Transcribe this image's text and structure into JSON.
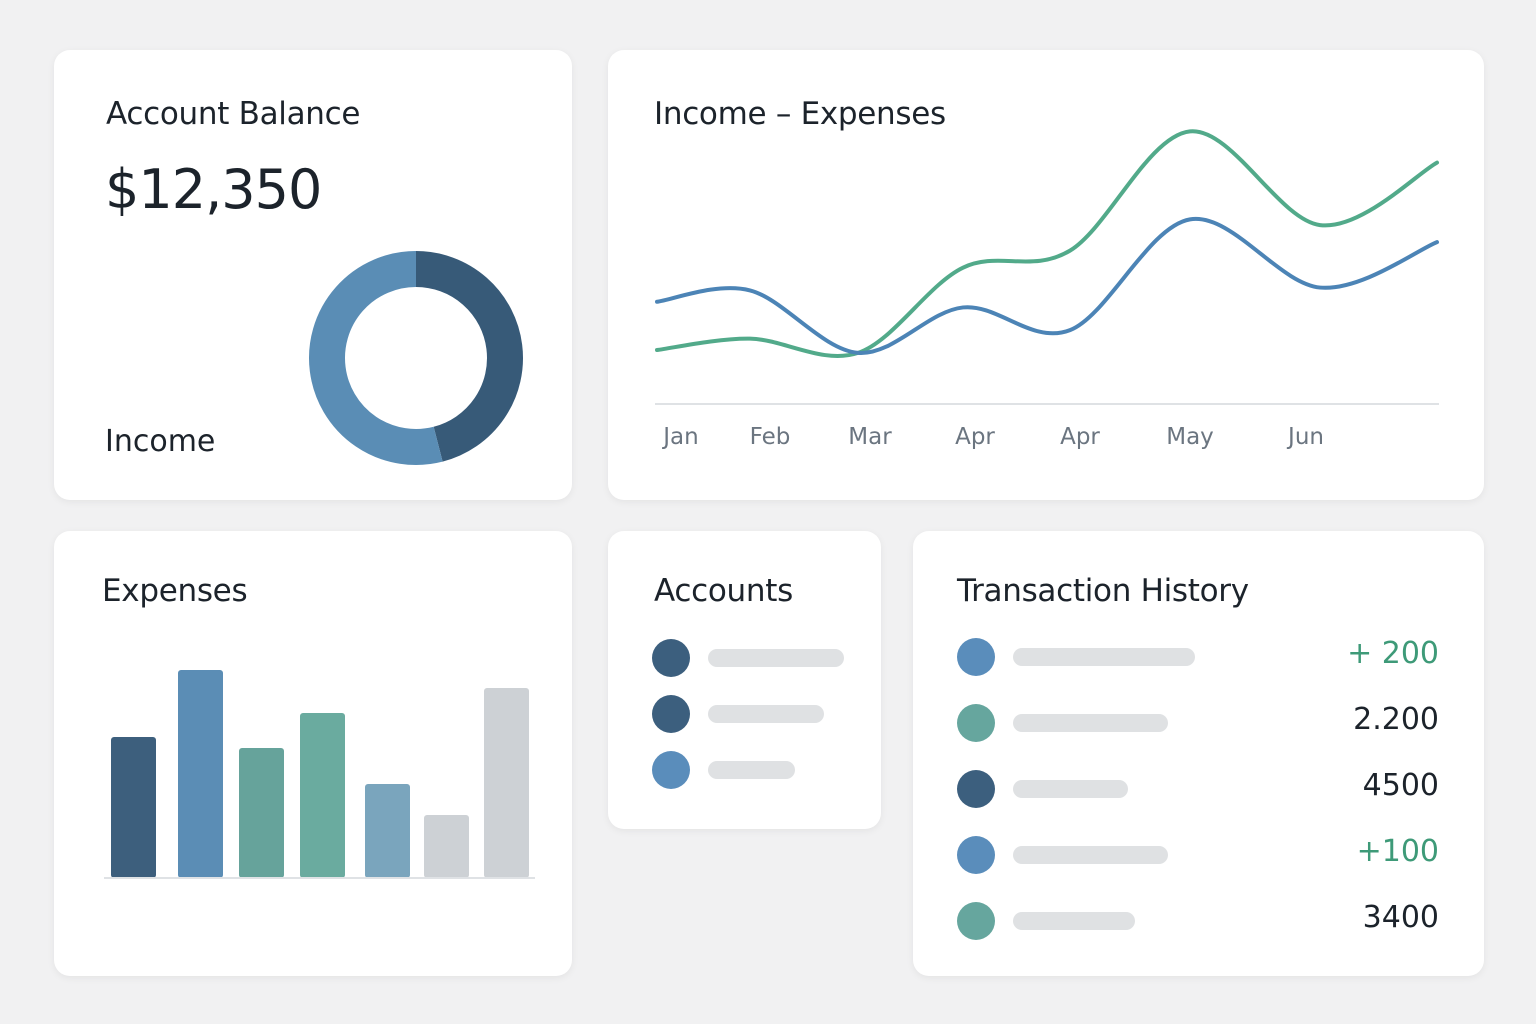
{
  "balance_card": {
    "title": "Account Balance",
    "amount": "$12,350",
    "label": "Income",
    "donut": {
      "segments": [
        {
          "share": 0.46,
          "color": "#375a78"
        },
        {
          "share": 0.54,
          "color": "#5a8db5"
        }
      ]
    }
  },
  "line_card": {
    "title": "Income – Expenses"
  },
  "expenses_card": {
    "title": "Expenses"
  },
  "accounts_card": {
    "title": "Accounts",
    "items": [
      {
        "color": "#3c5f7e",
        "bar_fill": 1.0
      },
      {
        "color": "#3c5f7e",
        "bar_fill": 0.85
      },
      {
        "color": "#5a8dbb",
        "bar_fill": 0.64
      }
    ]
  },
  "transactions_card": {
    "title": "Transaction History",
    "items": [
      {
        "color": "#5a8dbb",
        "amount": "+ 200",
        "positive": true,
        "bar_fill": 1.0
      },
      {
        "color": "#66a69e",
        "amount": "2.200",
        "positive": false,
        "bar_fill": 0.85
      },
      {
        "color": "#3c5f7e",
        "amount": "4500",
        "positive": false,
        "bar_fill": 0.63
      },
      {
        "color": "#5a8dbb",
        "amount": "+100",
        "positive": true,
        "bar_fill": 0.85
      },
      {
        "color": "#66a69e",
        "amount": "3400",
        "positive": false,
        "bar_fill": 0.67
      }
    ]
  },
  "chart_data": [
    {
      "type": "line",
      "categories": [
        "Jan",
        "Feb",
        "Mar",
        "Apr",
        "Apr",
        "May",
        "Jun",
        ""
      ],
      "series": [
        {
          "color": "#52aa8a",
          "values": [
            19,
            23,
            18,
            48,
            54,
            96,
            63,
            85
          ]
        },
        {
          "color": "#4c84b6",
          "values": [
            36,
            40,
            18,
            34,
            26,
            65,
            41,
            57
          ]
        }
      ],
      "ylim": [
        0,
        100
      ],
      "grid": false
    },
    {
      "type": "bar",
      "categories": [
        "",
        "",
        "",
        "",
        "",
        "",
        ""
      ],
      "values": [
        141,
        208,
        130,
        165,
        94,
        63,
        190
      ],
      "colors": [
        "#3d5f7d",
        "#5b8db5",
        "#66a39b",
        "#6aab9f",
        "#7aa5bd",
        "#cdd1d5",
        "#cdd1d5"
      ],
      "grid": false
    }
  ]
}
